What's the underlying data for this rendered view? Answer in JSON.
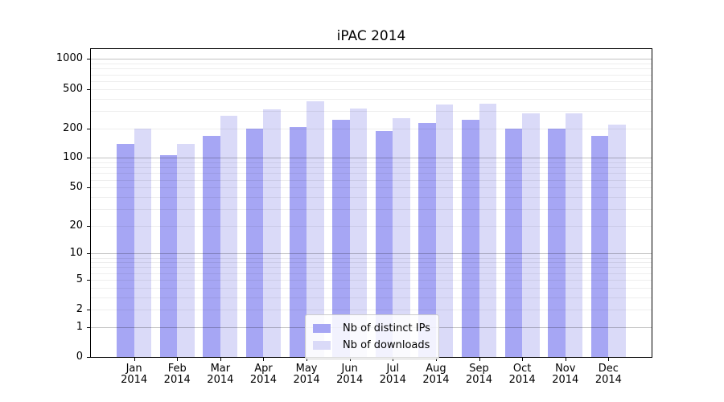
{
  "title": "iPAC 2014",
  "chart_data": {
    "type": "bar",
    "title": "iPAC 2014",
    "categories": [
      "Jan 2014",
      "Feb 2014",
      "Mar 2014",
      "Apr 2014",
      "May 2014",
      "Jun 2014",
      "Jul 2014",
      "Aug 2014",
      "Sep 2014",
      "Oct 2014",
      "Nov 2014",
      "Dec 2014"
    ],
    "x_tick_months": [
      "Jan",
      "Feb",
      "Mar",
      "Apr",
      "May",
      "Jun",
      "Jul",
      "Aug",
      "Sep",
      "Oct",
      "Nov",
      "Dec"
    ],
    "x_tick_year": "2014",
    "series": [
      {
        "name": "Nb of distinct IPs",
        "color": "#a6a6f4",
        "values": [
          139,
          107,
          168,
          199,
          207,
          246,
          187,
          226,
          243,
          197,
          200,
          166
        ]
      },
      {
        "name": "Nb of downloads",
        "color": "#dadaf8",
        "values": [
          197,
          139,
          270,
          308,
          376,
          315,
          255,
          349,
          353,
          284,
          284,
          219
        ]
      }
    ],
    "yscale": "log(value+1)",
    "y_ticks": [
      0,
      1,
      2,
      5,
      10,
      20,
      50,
      100,
      200,
      500,
      1000
    ],
    "y_major_gridlines": [
      1,
      10,
      100,
      1000
    ],
    "ylim": [
      0,
      1000
    ],
    "grid": true,
    "legend": {
      "position": "lower-center"
    }
  },
  "colors": {
    "axis": "#000000",
    "major_grid": "#c2c2c2",
    "minor_grid": "#ececec",
    "legend_border": "#cccccc"
  }
}
